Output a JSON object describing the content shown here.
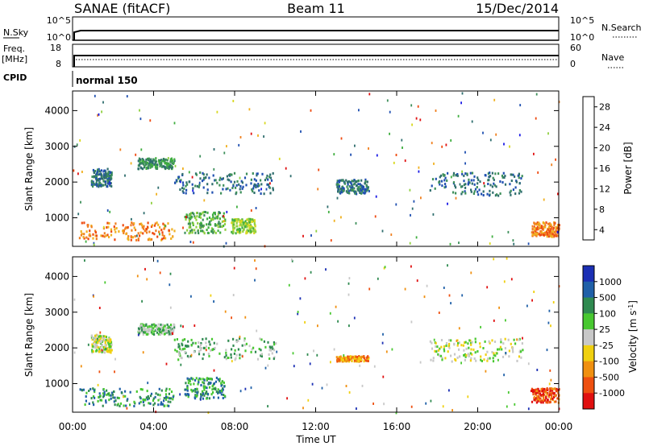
{
  "header": {
    "station": "SANAE (fitACF)",
    "beam": "Beam 11",
    "date": "15/Dec/2014"
  },
  "top_panels": {
    "nsky_label": "N.Sky",
    "nsky_ticks": [
      "10^5",
      "10^0"
    ],
    "nsearch_label": "N.Search",
    "nsearch_ticks": [
      "10^5",
      "10^0"
    ],
    "freq_label_1": "Freq.",
    "freq_label_2": "[MHz]",
    "freq_ticks": [
      "18",
      "8"
    ],
    "nave_label": "Nave",
    "nave_ticks": [
      "60",
      "0"
    ],
    "cpid_label": "CPID",
    "cpid_value": "normal 150"
  },
  "chart_data": [
    {
      "type": "heatmap",
      "panel": "power",
      "xlabel": "Time UT",
      "ylabel": "Slant Range [km]",
      "xticks": [
        "00:00",
        "04:00",
        "08:00",
        "12:00",
        "16:00",
        "20:00",
        "00:00"
      ],
      "yticks": [
        "1000",
        "2000",
        "3000",
        "4000"
      ],
      "ylim": [
        200,
        4550
      ],
      "xlim_hours": [
        0,
        24
      ],
      "colorbar": {
        "label": "Power [dB]",
        "ticks": [
          "28",
          "24",
          "20",
          "16",
          "12",
          "8",
          "4"
        ],
        "range": [
          0,
          30
        ],
        "colors": [
          "#1a1ae6",
          "#1f4fb0",
          "#2f6e6e",
          "#3d8f5a",
          "#3fae3f",
          "#90d040",
          "#d8d820",
          "#f0b020",
          "#f08020",
          "#ee4a10",
          "#e01010"
        ]
      },
      "features": [
        {
          "x": [
            0.9,
            1.9
          ],
          "y": [
            1900,
            2400
          ],
          "value_db": 6
        },
        {
          "x": [
            3.2,
            5.0
          ],
          "y": [
            2400,
            2700
          ],
          "value_db": 10
        },
        {
          "x": [
            5.0,
            10.0
          ],
          "y": [
            1700,
            2300
          ],
          "value_db": 6
        },
        {
          "x": [
            5.5,
            7.5
          ],
          "y": [
            600,
            1200
          ],
          "value_db": 12
        },
        {
          "x": [
            0.3,
            5.0
          ],
          "y": [
            400,
            900
          ],
          "value_db": 22
        },
        {
          "x": [
            7.8,
            9.0
          ],
          "y": [
            600,
            1000
          ],
          "value_db": 14
        },
        {
          "x": [
            17.6,
            22.2
          ],
          "y": [
            1650,
            2300
          ],
          "value_db": 6
        },
        {
          "x": [
            13.0,
            14.6
          ],
          "y": [
            1700,
            2100
          ],
          "value_db": 8
        },
        {
          "x": [
            22.6,
            24.0
          ],
          "y": [
            500,
            900
          ],
          "value_db": 24
        }
      ]
    },
    {
      "type": "heatmap",
      "panel": "velocity",
      "xlabel": "Time UT",
      "ylabel": "Slant Range [km]",
      "xticks": [
        "00:00",
        "04:00",
        "08:00",
        "12:00",
        "16:00",
        "20:00",
        "00:00"
      ],
      "yticks": [
        "1000",
        "2000",
        "3000",
        "4000"
      ],
      "ylim": [
        200,
        4550
      ],
      "xlim_hours": [
        0,
        24
      ],
      "colorbar": {
        "label": "Velocity [m s^-1]",
        "ticks": [
          "1000",
          "500",
          "100",
          "25",
          "-25",
          "-100",
          "-500",
          "-1000"
        ],
        "colors": [
          "#1b2fb4",
          "#2060a8",
          "#2f8a50",
          "#48c830",
          "#c8c8c8",
          "#f0d010",
          "#f09010",
          "#ee5010",
          "#e01010"
        ]
      },
      "features": [
        {
          "x": [
            0.9,
            1.9
          ],
          "y": [
            1900,
            2400
          ],
          "value_ms": 0
        },
        {
          "x": [
            3.2,
            5.0
          ],
          "y": [
            2400,
            2700
          ],
          "value_ms": 80
        },
        {
          "x": [
            5.0,
            10.0
          ],
          "y": [
            1700,
            2300
          ],
          "value_ms": 60
        },
        {
          "x": [
            5.5,
            7.5
          ],
          "y": [
            600,
            1200
          ],
          "value_ms": 300
        },
        {
          "x": [
            0.3,
            5.0
          ],
          "y": [
            400,
            900
          ],
          "value_ms": 200
        },
        {
          "x": [
            13.0,
            14.6
          ],
          "y": [
            1650,
            1800
          ],
          "value_ms": -300
        },
        {
          "x": [
            17.6,
            22.2
          ],
          "y": [
            1650,
            2300
          ],
          "value_ms": 10
        },
        {
          "x": [
            22.6,
            24.0
          ],
          "y": [
            500,
            900
          ],
          "value_ms": -700
        }
      ]
    }
  ]
}
